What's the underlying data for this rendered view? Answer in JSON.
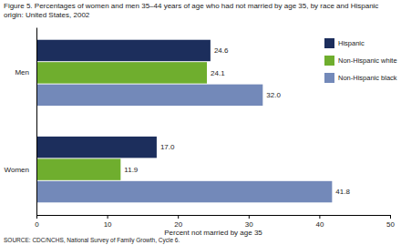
{
  "chart_data": {
    "type": "bar",
    "orientation": "horizontal",
    "title": "Figure 5. Percentages of women and men 35–44 years of age who had not married by age 35, by race and Hispanic origin: United States, 2002",
    "x_label": "Percent not married by age 35",
    "source": "SOURCE: CDC/NCHS, National Survey of Family Growth, Cycle 6.",
    "categories": [
      "Men",
      "Women"
    ],
    "series": [
      {
        "name": "Hispanic",
        "color": "#1c2e5c",
        "values": [
          24.6,
          17.0
        ],
        "value_labels": [
          "24.6",
          "17.0"
        ]
      },
      {
        "name": "Non-Hispanic white",
        "color": "#6fae2e",
        "values": [
          24.1,
          11.9
        ],
        "value_labels": [
          "24.1",
          "11.9"
        ]
      },
      {
        "name": "Non-Hispanic black",
        "color": "#7389b9",
        "values": [
          32.0,
          41.8
        ],
        "value_labels": [
          "32.0",
          "41.8"
        ]
      }
    ],
    "xlim": [
      0,
      50
    ],
    "xticks": [
      0,
      10,
      20,
      30,
      40,
      50
    ],
    "grid": false,
    "legend": "top-right",
    "data_labels": true
  }
}
